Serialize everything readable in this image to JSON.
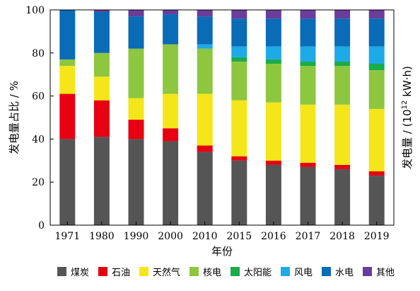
{
  "chart_data": {
    "type": "bar",
    "stacked": true,
    "categories": [
      "1971",
      "1980",
      "1990",
      "2000",
      "2010",
      "2015",
      "2016",
      "2017",
      "2018",
      "2019"
    ],
    "xlabel": "年份",
    "ylabel_left": "发电量占比 / %",
    "ylabel_right_main": "发电量 / (10",
    "ylabel_right_exp": "12",
    "ylabel_right_unit": " kW·h)",
    "ylim": [
      0,
      100
    ],
    "yticks": [
      "0",
      "20",
      "40",
      "60",
      "80",
      "100"
    ],
    "grid": false,
    "legend_position": "bottom",
    "series": [
      {
        "name": "煤炭",
        "color": "#555555",
        "values": [
          40,
          41,
          40,
          39,
          34,
          30,
          28,
          27,
          26,
          23
        ]
      },
      {
        "name": "石油",
        "color": "#e60012",
        "values": [
          21,
          17,
          9,
          6,
          3,
          2,
          2,
          2,
          2,
          2
        ]
      },
      {
        "name": "天然气",
        "color": "#f5e61a",
        "values": [
          13,
          11,
          10,
          16,
          24,
          26,
          27,
          27,
          28,
          29
        ]
      },
      {
        "name": "核电",
        "color": "#8dc63f",
        "values": [
          3,
          11,
          23,
          23,
          21,
          18,
          18,
          18,
          18,
          18
        ]
      },
      {
        "name": "太阳能",
        "color": "#1aab4a",
        "values": [
          0,
          0,
          0,
          0,
          0,
          2,
          2,
          2,
          2,
          3
        ]
      },
      {
        "name": "风电",
        "color": "#1eaae7",
        "values": [
          0,
          0,
          0,
          0,
          2,
          5,
          6,
          7,
          7,
          8
        ]
      },
      {
        "name": "水电",
        "color": "#0a6bb6",
        "values": [
          23,
          19,
          15,
          14,
          13,
          13,
          13,
          13,
          13,
          13
        ]
      },
      {
        "name": "其他",
        "color": "#6a3d9a",
        "values": [
          0,
          1,
          3,
          2,
          3,
          4,
          4,
          4,
          4,
          4
        ]
      }
    ]
  }
}
